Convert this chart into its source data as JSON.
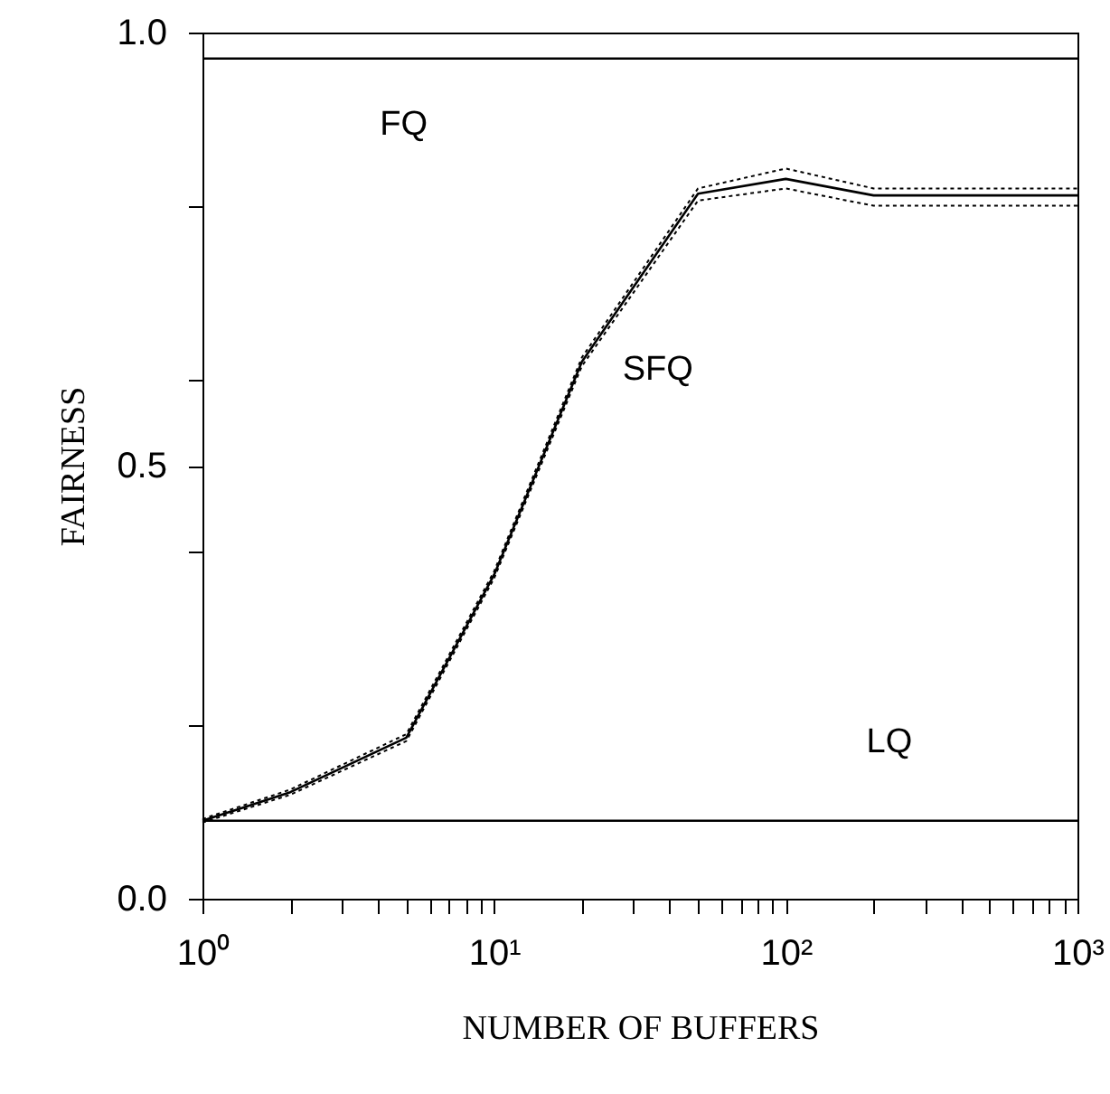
{
  "chart_data": {
    "type": "line",
    "xlabel": "NUMBER OF BUFFERS",
    "ylabel": "FAIRNESS",
    "log": "x",
    "xlim": [
      1,
      1000
    ],
    "ylim": [
      0,
      1
    ],
    "xticks": [
      {
        "value": 1,
        "label": "10⁰"
      },
      {
        "value": 2,
        "label": null
      },
      {
        "value": 3,
        "label": null
      },
      {
        "value": 4,
        "label": null
      },
      {
        "value": 5,
        "label": null
      },
      {
        "value": 6,
        "label": null
      },
      {
        "value": 7,
        "label": null
      },
      {
        "value": 8,
        "label": null
      },
      {
        "value": 9,
        "label": null
      },
      {
        "value": 10,
        "label": "10¹"
      },
      {
        "value": 20,
        "label": null
      },
      {
        "value": 30,
        "label": null
      },
      {
        "value": 40,
        "label": null
      },
      {
        "value": 50,
        "label": null
      },
      {
        "value": 60,
        "label": null
      },
      {
        "value": 70,
        "label": null
      },
      {
        "value": 80,
        "label": null
      },
      {
        "value": 90,
        "label": null
      },
      {
        "value": 100,
        "label": "10²"
      },
      {
        "value": 200,
        "label": null
      },
      {
        "value": 300,
        "label": null
      },
      {
        "value": 400,
        "label": null
      },
      {
        "value": 500,
        "label": null
      },
      {
        "value": 600,
        "label": null
      },
      {
        "value": 700,
        "label": null
      },
      {
        "value": 800,
        "label": null
      },
      {
        "value": 900,
        "label": null
      },
      {
        "value": 1000,
        "label": "10³"
      }
    ],
    "yticks": [
      {
        "value": 0,
        "label": "0.0"
      },
      {
        "value": 0.2,
        "label": null
      },
      {
        "value": 0.4,
        "label": null
      },
      {
        "value": 0.5,
        "label": "0.5"
      },
      {
        "value": 0.6,
        "label": null
      },
      {
        "value": 0.8,
        "label": null
      },
      {
        "value": 1,
        "label": "1.0"
      }
    ],
    "grid": false,
    "marker": "none",
    "line_style": "solid",
    "series": [
      {
        "name": "FQ",
        "color": "#000000",
        "x": [
          1,
          1000
        ],
        "values": [
          0.97,
          0.97
        ]
      },
      {
        "name": "SFQ",
        "color": "#000000",
        "x": [
          1,
          2,
          5,
          10,
          20,
          50,
          100,
          200,
          1000
        ],
        "values": [
          0.09,
          0.123,
          0.186,
          0.374,
          0.62,
          0.814,
          0.831,
          0.812,
          0.812
        ]
      },
      {
        "color": "#000000",
        "line_style": "dotted",
        "x": [
          1,
          2,
          5,
          10,
          20,
          50,
          100,
          200,
          1000
        ],
        "values": [
          0.092,
          0.126,
          0.19,
          0.378,
          0.625,
          0.82,
          0.843,
          0.82,
          0.82
        ]
      },
      {
        "color": "#000000",
        "line_style": "dotted",
        "x": [
          1,
          2,
          5,
          10,
          20,
          50,
          100,
          200,
          1000
        ],
        "values": [
          0.088,
          0.12,
          0.182,
          0.37,
          0.615,
          0.806,
          0.82,
          0.8,
          0.8
        ]
      },
      {
        "name": "LQ",
        "color": "#000000",
        "x": [
          1,
          1000
        ],
        "values": [
          0.09,
          0.09
        ]
      }
    ]
  }
}
